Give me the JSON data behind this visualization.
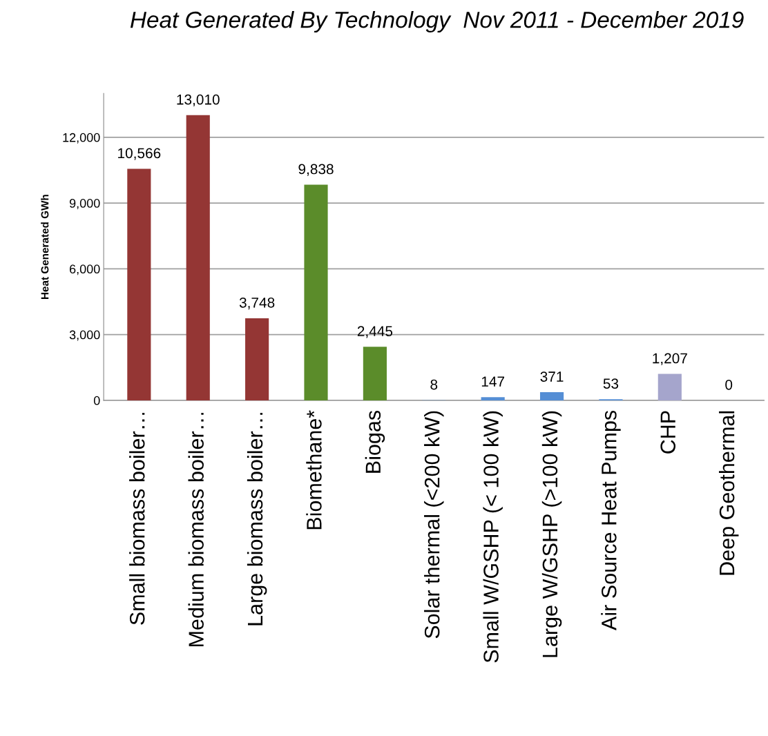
{
  "chart_data": {
    "type": "bar",
    "title": "Heat Generated By Technology  Nov 2011 - December 2019",
    "ylabel": "Heat Generated GWh",
    "categories": [
      "Small biomass boiler…",
      "Medium biomass boiler…",
      "Large biomass boiler…",
      "Biomethane*",
      "Biogas",
      "Solar thermal (<200 kW)",
      "Small W/GSHP (< 100 kW)",
      "Large W/GSHP (>100 kW)",
      "Air Source Heat Pumps",
      "CHP",
      "Deep Geothermal"
    ],
    "values": [
      10566,
      13010,
      3748,
      9838,
      2445,
      8,
      147,
      371,
      53,
      1207,
      0
    ],
    "value_labels": [
      "10,566",
      "13,010",
      "3,748",
      "9,838",
      "2,445",
      "8",
      "147",
      "371",
      "53",
      "1,207",
      "0"
    ],
    "colors": [
      "#943634",
      "#943634",
      "#943634",
      "#5b8c2a",
      "#5b8c2a",
      "#558ed5",
      "#558ed5",
      "#558ed5",
      "#558ed5",
      "#a5a5cc",
      "#a5a5cc"
    ],
    "ylim": [
      0,
      14000
    ],
    "yticks": [
      {
        "value": 0,
        "label": "0"
      },
      {
        "value": 3000,
        "label": "3,000"
      },
      {
        "value": 6000,
        "label": "6,000"
      },
      {
        "value": 9000,
        "label": "9,000"
      },
      {
        "value": 12000,
        "label": "12,000"
      }
    ],
    "grid": "y",
    "legend": false
  }
}
